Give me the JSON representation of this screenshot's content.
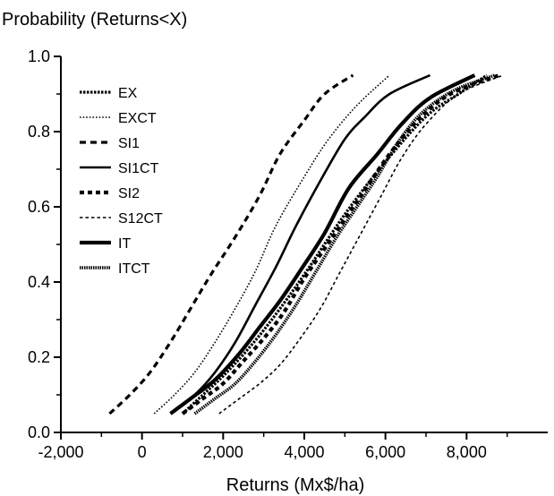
{
  "chart_data": {
    "type": "line",
    "title": "",
    "ylabel": "Probability  (Returns<X)",
    "xlabel": "Returns (Mx$/ha)",
    "xlim": [
      -2000,
      10000
    ],
    "ylim": [
      0,
      1
    ],
    "grid": false,
    "legend_position": "top-left",
    "x_ticks": [
      -2000,
      0,
      2000,
      4000,
      6000,
      8000
    ],
    "x_tick_labels": [
      "-2,000",
      "0",
      "2,000",
      "4,000",
      "6,000",
      "8,000"
    ],
    "y_ticks": [
      0,
      0.2,
      0.4,
      0.6,
      0.8,
      1
    ],
    "y_tick_labels": [
      "0.0",
      "0.2",
      "0.4",
      "0.6",
      "0.8",
      "1.0"
    ],
    "series": [
      {
        "name": "EX",
        "style": "dense-dot-thick",
        "x": [
          1000,
          1500,
          2000,
          2600,
          3200,
          4000,
          5000,
          6000,
          7000,
          7800,
          8500
        ],
        "y": [
          0.05,
          0.1,
          0.15,
          0.22,
          0.3,
          0.42,
          0.58,
          0.72,
          0.84,
          0.9,
          0.95
        ]
      },
      {
        "name": "EXCT",
        "style": "dotted-thin",
        "x": [
          300,
          800,
          1300,
          1800,
          2300,
          2800,
          3300,
          4000,
          4600,
          5300,
          6100
        ],
        "y": [
          0.05,
          0.1,
          0.16,
          0.24,
          0.33,
          0.43,
          0.55,
          0.68,
          0.78,
          0.87,
          0.95
        ]
      },
      {
        "name": "SI1",
        "style": "dashed",
        "x": [
          -800,
          -300,
          200,
          700,
          1200,
          1700,
          2300,
          2900,
          3400,
          4000,
          4500,
          5200
        ],
        "y": [
          0.05,
          0.1,
          0.16,
          0.24,
          0.33,
          0.42,
          0.52,
          0.63,
          0.74,
          0.83,
          0.9,
          0.95
        ]
      },
      {
        "name": "SI1CT",
        "style": "solid",
        "x": [
          800,
          1300,
          1800,
          2300,
          2800,
          3300,
          3800,
          4400,
          5000,
          5500,
          6100,
          7100
        ],
        "y": [
          0.06,
          0.1,
          0.16,
          0.24,
          0.34,
          0.44,
          0.55,
          0.67,
          0.78,
          0.84,
          0.9,
          0.95
        ]
      },
      {
        "name": "SI2",
        "style": "dashed-thick",
        "x": [
          1000,
          1500,
          2000,
          2500,
          3000,
          3500,
          4000,
          4700,
          5400,
          6100,
          6800,
          7600,
          8800
        ],
        "y": [
          0.05,
          0.09,
          0.13,
          0.19,
          0.25,
          0.32,
          0.41,
          0.52,
          0.63,
          0.74,
          0.83,
          0.9,
          0.95
        ]
      },
      {
        "name": "S12CT",
        "style": "dashed-thin",
        "x": [
          1900,
          2400,
          2900,
          3400,
          3900,
          4400,
          4900,
          5400,
          5900,
          6400,
          7000,
          7800,
          8900
        ],
        "y": [
          0.05,
          0.09,
          0.13,
          0.18,
          0.25,
          0.33,
          0.43,
          0.53,
          0.63,
          0.73,
          0.82,
          0.9,
          0.95
        ]
      },
      {
        "name": "IT",
        "style": "solid-thick",
        "x": [
          700,
          1200,
          1800,
          2400,
          2900,
          3400,
          3900,
          4500,
          5100,
          5800,
          6400,
          7100,
          8200
        ],
        "y": [
          0.05,
          0.09,
          0.14,
          0.21,
          0.28,
          0.35,
          0.43,
          0.53,
          0.65,
          0.74,
          0.82,
          0.89,
          0.95
        ]
      },
      {
        "name": "ITCT",
        "style": "dotted-thick",
        "x": [
          1300,
          1800,
          2300,
          2800,
          3300,
          3800,
          4300,
          4800,
          5300,
          5800,
          6300,
          6900,
          7700,
          8700
        ],
        "y": [
          0.05,
          0.09,
          0.13,
          0.19,
          0.26,
          0.34,
          0.43,
          0.52,
          0.6,
          0.68,
          0.77,
          0.85,
          0.91,
          0.95
        ]
      }
    ]
  }
}
